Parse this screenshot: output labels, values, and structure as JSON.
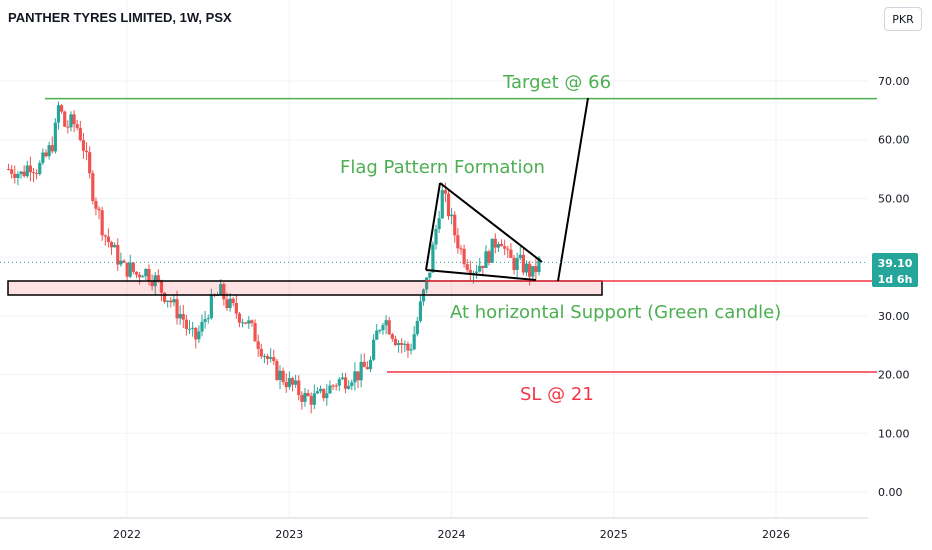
{
  "header": {
    "title": "PANTHER TYRES LIMITED, 1W, PSX",
    "currency": "PKR"
  },
  "colors": {
    "up": "#26a69a",
    "down": "#ef5350",
    "target_line": "#4caf50",
    "support_line": "#f23645",
    "annotation_green": "#4caf50",
    "annotation_red": "#f23645",
    "price_tag": "#26a69a"
  },
  "chart_data": {
    "type": "candlestick",
    "title": "PANTHER TYRES LIMITED, 1W, PSX",
    "currency": "PKR",
    "ylim": [
      -5,
      75
    ],
    "y_ticks": [
      0,
      10,
      20,
      30,
      40,
      50,
      60,
      70
    ],
    "y_tick_labels": [
      "0.00",
      "10.00",
      "20.00",
      "30.00",
      "40.00",
      "50.00",
      "60.00",
      "70.00"
    ],
    "x_ticks": [
      "2022",
      "2023",
      "2024",
      "2025",
      "2026"
    ],
    "grid": true,
    "last_price": {
      "value": 39.1,
      "label": "39.10",
      "countdown": "1d 6h"
    },
    "series_close": [
      [
        2021.3,
        55
      ],
      [
        2021.35,
        54
      ],
      [
        2021.4,
        56
      ],
      [
        2021.45,
        55
      ],
      [
        2021.5,
        57
      ],
      [
        2021.55,
        60
      ],
      [
        2021.58,
        66
      ],
      [
        2021.62,
        62
      ],
      [
        2021.66,
        63
      ],
      [
        2021.7,
        62
      ],
      [
        2021.74,
        58
      ],
      [
        2021.78,
        52
      ],
      [
        2021.82,
        48
      ],
      [
        2021.86,
        44
      ],
      [
        2021.9,
        42
      ],
      [
        2021.94,
        40
      ],
      [
        2021.98,
        38
      ],
      [
        2022.02,
        38
      ],
      [
        2022.06,
        37
      ],
      [
        2022.1,
        38
      ],
      [
        2022.14,
        37
      ],
      [
        2022.18,
        36
      ],
      [
        2022.22,
        34
      ],
      [
        2022.26,
        33
      ],
      [
        2022.3,
        31
      ],
      [
        2022.34,
        30
      ],
      [
        2022.38,
        27
      ],
      [
        2022.42,
        26
      ],
      [
        2022.46,
        28
      ],
      [
        2022.5,
        31
      ],
      [
        2022.54,
        33
      ],
      [
        2022.58,
        34
      ],
      [
        2022.62,
        32
      ],
      [
        2022.66,
        31
      ],
      [
        2022.7,
        30
      ],
      [
        2022.74,
        29
      ],
      [
        2022.78,
        27
      ],
      [
        2022.82,
        25
      ],
      [
        2022.86,
        23
      ],
      [
        2022.9,
        21
      ],
      [
        2022.94,
        20
      ],
      [
        2022.98,
        19
      ],
      [
        2023.02,
        18
      ],
      [
        2023.06,
        17
      ],
      [
        2023.1,
        16
      ],
      [
        2023.14,
        16
      ],
      [
        2023.18,
        16
      ],
      [
        2023.22,
        17
      ],
      [
        2023.26,
        18
      ],
      [
        2023.3,
        19
      ],
      [
        2023.34,
        19
      ],
      [
        2023.38,
        20
      ],
      [
        2023.42,
        20
      ],
      [
        2023.46,
        21
      ],
      [
        2023.5,
        22
      ],
      [
        2023.54,
        27
      ],
      [
        2023.58,
        30
      ],
      [
        2023.62,
        28
      ],
      [
        2023.66,
        26
      ],
      [
        2023.7,
        25
      ],
      [
        2023.74,
        24
      ],
      [
        2023.78,
        28
      ],
      [
        2023.82,
        33
      ],
      [
        2023.86,
        37
      ],
      [
        2023.9,
        44
      ],
      [
        2023.94,
        51
      ],
      [
        2023.98,
        48
      ],
      [
        2024.02,
        44
      ],
      [
        2024.06,
        41
      ],
      [
        2024.1,
        39
      ],
      [
        2024.14,
        38
      ],
      [
        2024.18,
        39
      ],
      [
        2024.22,
        40
      ],
      [
        2024.26,
        42
      ],
      [
        2024.3,
        44
      ],
      [
        2024.34,
        40
      ],
      [
        2024.38,
        39
      ],
      [
        2024.42,
        39
      ],
      [
        2024.46,
        38
      ],
      [
        2024.5,
        37
      ],
      [
        2024.54,
        39.1
      ]
    ],
    "annotations": [
      {
        "text": "Target @ 66",
        "value": 66,
        "color": "green"
      },
      {
        "text": "Flag Pattern Formation",
        "color": "green"
      },
      {
        "text": "At horizontal Support (Green candle)",
        "value": 35,
        "color": "green"
      },
      {
        "text": "SL @ 21",
        "value": 21,
        "color": "red"
      }
    ]
  },
  "annotations": {
    "target": "Target @ 66",
    "flag": "Flag Pattern Formation",
    "support": "At horizontal Support (Green candle)",
    "sl": "SL @ 21"
  }
}
